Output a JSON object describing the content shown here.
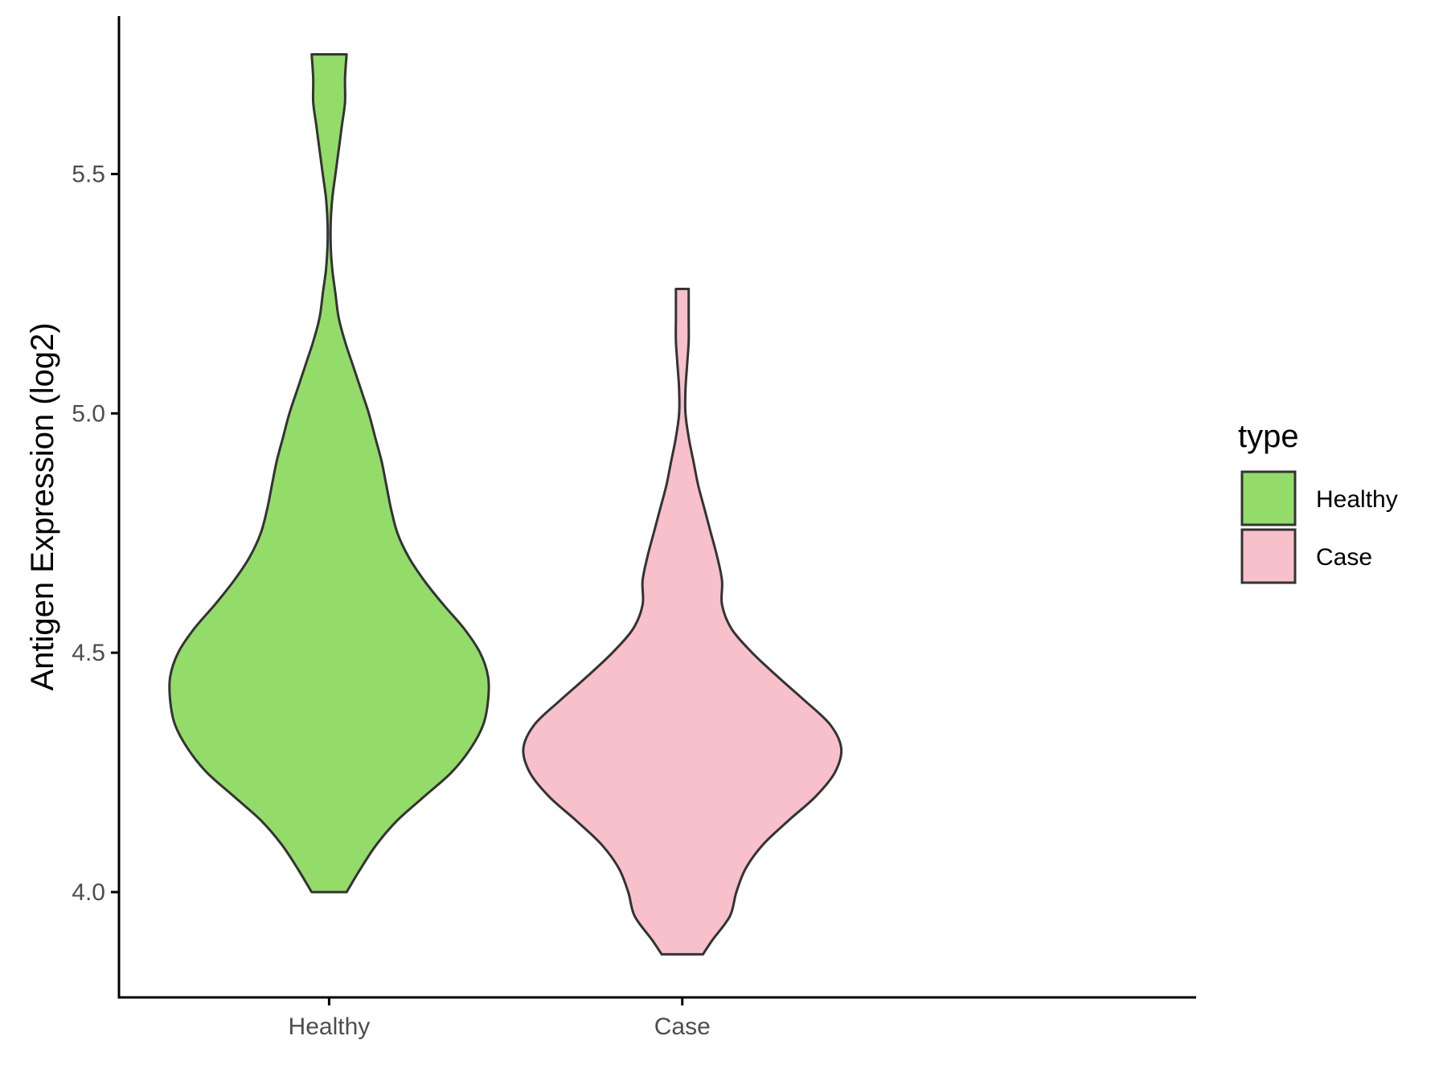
{
  "chart_data": {
    "type": "violin",
    "title": "",
    "xlabel": "",
    "ylabel": "Antigen Expression (log2)",
    "ylim": [
      3.78,
      5.83
    ],
    "y_ticks": [
      "4.0",
      "4.5",
      "5.0",
      "5.5"
    ],
    "grid": false,
    "categories": [
      "Healthy",
      "Case"
    ],
    "legend": {
      "title": "type",
      "placement": "right",
      "entries": [
        "Healthy",
        "Case"
      ]
    },
    "series": [
      {
        "name": "Healthy",
        "color": "#93dc6a",
        "min": 4.0,
        "max": 5.75,
        "density_profile": [
          [
            4.0,
            0.11
          ],
          [
            4.05,
            0.2
          ],
          [
            4.1,
            0.3
          ],
          [
            4.15,
            0.43
          ],
          [
            4.2,
            0.6
          ],
          [
            4.25,
            0.77
          ],
          [
            4.3,
            0.89
          ],
          [
            4.35,
            0.97
          ],
          [
            4.4,
            1.0
          ],
          [
            4.45,
            1.0
          ],
          [
            4.5,
            0.95
          ],
          [
            4.55,
            0.85
          ],
          [
            4.6,
            0.72
          ],
          [
            4.65,
            0.6
          ],
          [
            4.7,
            0.5
          ],
          [
            4.75,
            0.43
          ],
          [
            4.8,
            0.39
          ],
          [
            4.85,
            0.36
          ],
          [
            4.9,
            0.33
          ],
          [
            4.95,
            0.29
          ],
          [
            5.0,
            0.25
          ],
          [
            5.05,
            0.2
          ],
          [
            5.1,
            0.15
          ],
          [
            5.15,
            0.1
          ],
          [
            5.2,
            0.06
          ],
          [
            5.25,
            0.04
          ],
          [
            5.3,
            0.02
          ],
          [
            5.35,
            0.01
          ],
          [
            5.4,
            0.01
          ],
          [
            5.45,
            0.02
          ],
          [
            5.5,
            0.04
          ],
          [
            5.55,
            0.06
          ],
          [
            5.6,
            0.08
          ],
          [
            5.65,
            0.1
          ],
          [
            5.7,
            0.1
          ],
          [
            5.75,
            0.11
          ]
        ]
      },
      {
        "name": "Case",
        "color": "#f7c0cb",
        "min": 3.87,
        "max": 5.26,
        "density_profile": [
          [
            3.87,
            0.13
          ],
          [
            3.9,
            0.19
          ],
          [
            3.95,
            0.3
          ],
          [
            4.0,
            0.34
          ],
          [
            4.05,
            0.4
          ],
          [
            4.1,
            0.51
          ],
          [
            4.15,
            0.67
          ],
          [
            4.2,
            0.84
          ],
          [
            4.25,
            0.96
          ],
          [
            4.3,
            1.0
          ],
          [
            4.35,
            0.93
          ],
          [
            4.4,
            0.77
          ],
          [
            4.45,
            0.6
          ],
          [
            4.5,
            0.44
          ],
          [
            4.55,
            0.31
          ],
          [
            4.6,
            0.25
          ],
          [
            4.65,
            0.25
          ],
          [
            4.7,
            0.22
          ],
          [
            4.75,
            0.18
          ],
          [
            4.8,
            0.14
          ],
          [
            4.85,
            0.1
          ],
          [
            4.9,
            0.07
          ],
          [
            4.95,
            0.04
          ],
          [
            5.0,
            0.02
          ],
          [
            5.05,
            0.02
          ],
          [
            5.1,
            0.03
          ],
          [
            5.15,
            0.04
          ],
          [
            5.2,
            0.04
          ],
          [
            5.26,
            0.04
          ]
        ]
      }
    ]
  }
}
